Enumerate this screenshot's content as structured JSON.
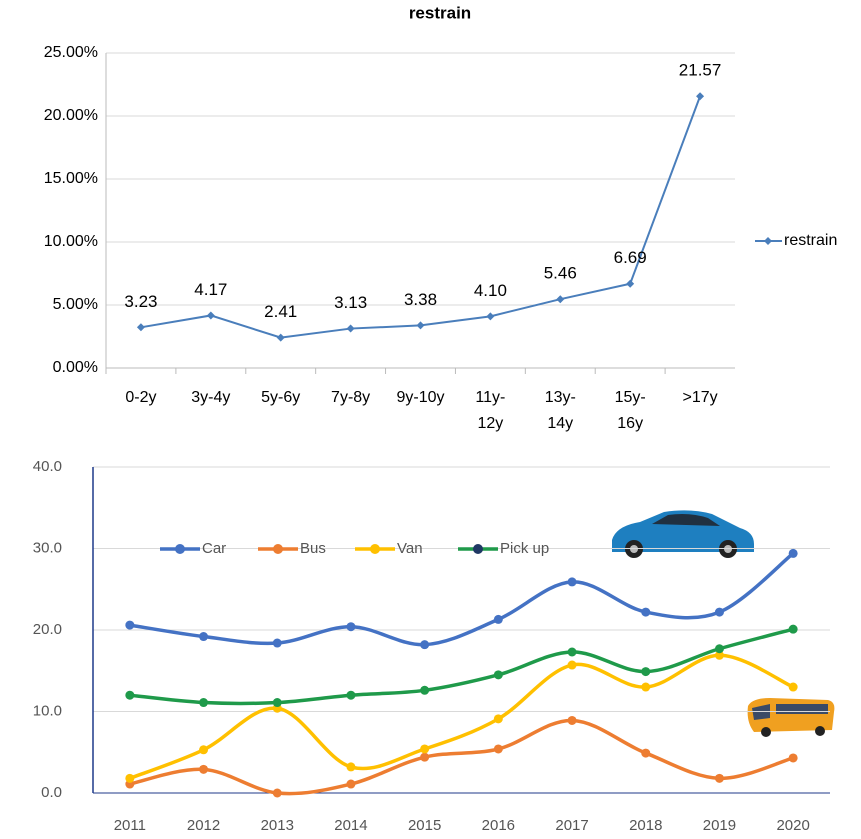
{
  "chart_data": [
    {
      "type": "line",
      "title": "restrain",
      "categories": [
        "0-2y",
        "3y-4y",
        "5y-6y",
        "7y-8y",
        "9y-10y",
        "11y-12y",
        "13y-14y",
        "15y-16y",
        ">17y"
      ],
      "series": [
        {
          "name": "restrain",
          "color": "#4a7ebb",
          "values": [
            3.23,
            4.17,
            2.41,
            3.13,
            3.38,
            4.1,
            5.46,
            6.69,
            21.57
          ],
          "value_labels": [
            "3.23",
            "4.17",
            "2.41",
            "3.13",
            "3.38",
            "4.10",
            "5.46",
            "6.69",
            "21.57"
          ]
        }
      ],
      "ylim": [
        0,
        25
      ],
      "yticks": [
        {
          "value": 0,
          "label": "0.00%"
        },
        {
          "value": 5,
          "label": "5.00%"
        },
        {
          "value": 10,
          "label": "10.00%"
        },
        {
          "value": 15,
          "label": "15.00%"
        },
        {
          "value": 20,
          "label": "20.00%"
        },
        {
          "value": 25,
          "label": "25.00%"
        }
      ],
      "grid": true,
      "legend": "right",
      "smooth": false
    },
    {
      "type": "line",
      "categories": [
        "2011",
        "2012",
        "2013",
        "2014",
        "2015",
        "2016",
        "2017",
        "2018",
        "2019",
        "2020"
      ],
      "series": [
        {
          "name": "Car",
          "color": "#4472c4",
          "values": [
            20.6,
            19.2,
            18.4,
            20.4,
            18.2,
            21.3,
            25.9,
            22.2,
            22.2,
            29.4
          ]
        },
        {
          "name": "Bus",
          "color": "#ed7d31",
          "values": [
            1.1,
            2.9,
            0,
            1.1,
            4.4,
            5.4,
            8.9,
            4.9,
            1.8,
            4.3
          ]
        },
        {
          "name": "Van",
          "color": "#ffc000",
          "values": [
            1.8,
            5.3,
            10.4,
            3.2,
            5.4,
            9.1,
            15.7,
            13.0,
            16.9,
            13.0
          ]
        },
        {
          "name": "Pick up",
          "color": "#1f9a4a",
          "values": [
            12.0,
            11.1,
            11.1,
            12.0,
            12.6,
            14.5,
            17.3,
            14.9,
            17.7,
            20.1
          ]
        }
      ],
      "ylim": [
        0,
        40
      ],
      "yticks": [
        {
          "value": 0,
          "label": "0.0"
        },
        {
          "value": 10,
          "label": "10.0"
        },
        {
          "value": 20,
          "label": "20.0"
        },
        {
          "value": 30,
          "label": "30.0"
        },
        {
          "value": 40,
          "label": "40.0"
        }
      ],
      "grid": true,
      "legend": "top-left",
      "smooth": true
    }
  ]
}
